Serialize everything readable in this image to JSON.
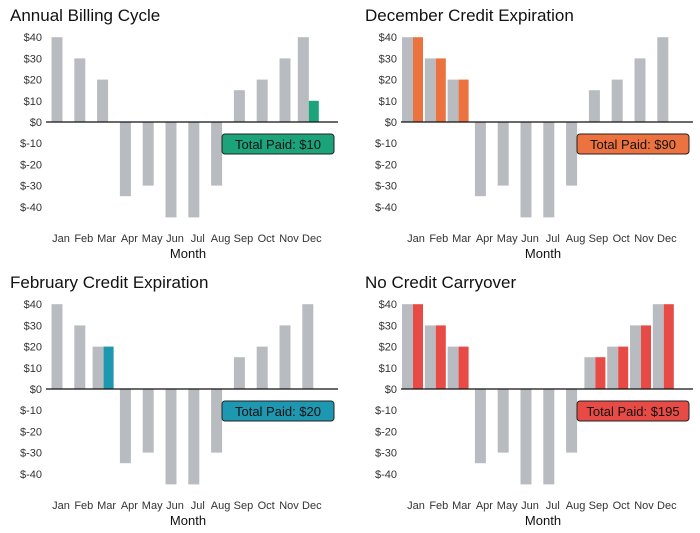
{
  "chart_data": [
    {
      "type": "bar",
      "title": "Annual Billing Cycle",
      "xlabel": "Month",
      "ylabel": "",
      "ylim": [
        -50,
        45
      ],
      "yticks": [
        "$40",
        "$30",
        "$20",
        "$10",
        "$0",
        "$-10",
        "$-20",
        "$-30",
        "$-40"
      ],
      "ytick_values": [
        40,
        30,
        20,
        10,
        0,
        -10,
        -20,
        -30,
        -40
      ],
      "categories": [
        "Jan",
        "Feb",
        "Mar",
        "Apr",
        "May",
        "Jun",
        "Jul",
        "Aug",
        "Sep",
        "Oct",
        "Nov",
        "Dec"
      ],
      "series": [
        {
          "values": [
            40,
            30,
            20,
            -35,
            -30,
            -45,
            -45,
            -30,
            15,
            20,
            30,
            40
          ],
          "color": "#b8bcc0"
        },
        {
          "values": [
            null,
            null,
            null,
            null,
            null,
            null,
            null,
            null,
            null,
            null,
            null,
            10
          ],
          "color": "#1ba37a"
        }
      ],
      "annotation": {
        "text": "Total Paid: $10",
        "color": "#1ba37a"
      },
      "grid": false
    },
    {
      "type": "bar",
      "title": "December Credit Expiration",
      "xlabel": "Month",
      "ylabel": "",
      "ylim": [
        -50,
        45
      ],
      "yticks": [
        "$40",
        "$30",
        "$20",
        "$10",
        "$0",
        "$-10",
        "$-20",
        "$-30",
        "$-40"
      ],
      "ytick_values": [
        40,
        30,
        20,
        10,
        0,
        -10,
        -20,
        -30,
        -40
      ],
      "categories": [
        "Jan",
        "Feb",
        "Mar",
        "Apr",
        "May",
        "Jun",
        "Jul",
        "Aug",
        "Sep",
        "Oct",
        "Nov",
        "Dec"
      ],
      "series": [
        {
          "values": [
            40,
            30,
            20,
            -35,
            -30,
            -45,
            -45,
            -30,
            15,
            20,
            30,
            40
          ],
          "color": "#b8bcc0"
        },
        {
          "values": [
            40,
            30,
            20,
            null,
            null,
            null,
            null,
            null,
            null,
            null,
            null,
            null
          ],
          "color": "#ec7340"
        }
      ],
      "annotation": {
        "text": "Total Paid: $90",
        "color": "#ec7340"
      },
      "grid": false
    },
    {
      "type": "bar",
      "title": "February Credit Expiration",
      "xlabel": "Month",
      "ylabel": "",
      "ylim": [
        -50,
        45
      ],
      "yticks": [
        "$40",
        "$30",
        "$20",
        "$10",
        "$0",
        "$-10",
        "$-20",
        "$-30",
        "$-40"
      ],
      "ytick_values": [
        40,
        30,
        20,
        10,
        0,
        -10,
        -20,
        -30,
        -40
      ],
      "categories": [
        "Jan",
        "Feb",
        "Mar",
        "Apr",
        "May",
        "Jun",
        "Jul",
        "Aug",
        "Sep",
        "Oct",
        "Nov",
        "Dec"
      ],
      "series": [
        {
          "values": [
            40,
            30,
            20,
            -35,
            -30,
            -45,
            -45,
            -30,
            15,
            20,
            30,
            40
          ],
          "color": "#b8bcc0"
        },
        {
          "values": [
            null,
            null,
            20,
            null,
            null,
            null,
            null,
            null,
            null,
            null,
            null,
            null
          ],
          "color": "#1e97b0"
        }
      ],
      "annotation": {
        "text": "Total Paid: $20",
        "color": "#1e97b0"
      },
      "grid": false
    },
    {
      "type": "bar",
      "title": "No Credit Carryover",
      "xlabel": "Month",
      "ylabel": "",
      "ylim": [
        -50,
        45
      ],
      "yticks": [
        "$40",
        "$30",
        "$20",
        "$10",
        "$0",
        "$-10",
        "$-20",
        "$-30",
        "$-40"
      ],
      "ytick_values": [
        40,
        30,
        20,
        10,
        0,
        -10,
        -20,
        -30,
        -40
      ],
      "categories": [
        "Jan",
        "Feb",
        "Mar",
        "Apr",
        "May",
        "Jun",
        "Jul",
        "Aug",
        "Sep",
        "Oct",
        "Nov",
        "Dec"
      ],
      "series": [
        {
          "values": [
            40,
            30,
            20,
            -35,
            -30,
            -45,
            -45,
            -30,
            15,
            20,
            30,
            40
          ],
          "color": "#b8bcc0"
        },
        {
          "values": [
            40,
            30,
            20,
            null,
            null,
            null,
            null,
            null,
            15,
            20,
            30,
            40
          ],
          "color": "#e84a45"
        }
      ],
      "annotation": {
        "text": "Total Paid: $195",
        "color": "#e84a45"
      },
      "grid": false
    }
  ]
}
